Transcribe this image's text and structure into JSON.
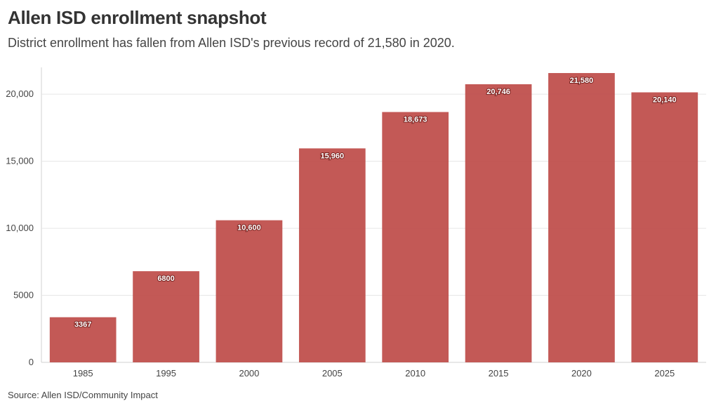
{
  "title": "Allen ISD enrollment snapshot",
  "subtitle": "District enrollment has fallen from Allen ISD's previous record of 21,580 in 2020.",
  "source": "Source: Allen ISD/Community Impact",
  "colors": {
    "bar": "#c0504d",
    "gridline": "#e6e6e6",
    "axis": "#d0d0d0"
  },
  "chart_data": {
    "type": "bar",
    "title": "Allen ISD enrollment snapshot",
    "xlabel": "",
    "ylabel": "",
    "categories": [
      "1985",
      "1995",
      "2000",
      "2005",
      "2010",
      "2015",
      "2020",
      "2025"
    ],
    "values": [
      3367,
      6800,
      10600,
      15960,
      18673,
      20746,
      21580,
      20140
    ],
    "value_labels": [
      "3367",
      "6800",
      "10,600",
      "15,960",
      "18,673",
      "20,746",
      "21,580",
      "20,140"
    ],
    "yticks": [
      0,
      5000,
      10000,
      15000,
      20000
    ],
    "ytick_labels": [
      "0",
      "5000",
      "10,000",
      "15,000",
      "20,000"
    ],
    "ylim": [
      0,
      22000
    ],
    "grid": true,
    "legend": "none"
  }
}
